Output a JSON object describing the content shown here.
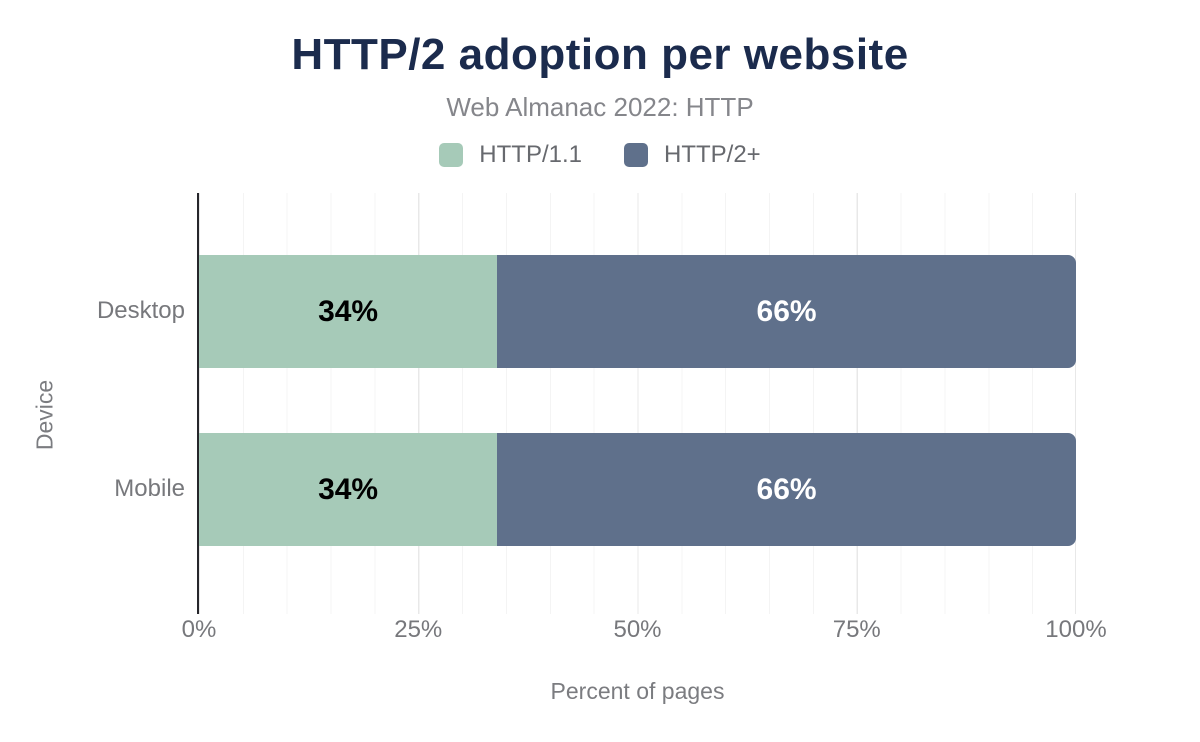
{
  "chart_data": {
    "type": "bar",
    "orientation": "horizontal",
    "stacked": true,
    "title": "HTTP/2 adoption per website",
    "subtitle": "Web Almanac 2022: HTTP",
    "xlabel": "Percent of pages",
    "ylabel": "Device",
    "categories": [
      "Desktop",
      "Mobile"
    ],
    "series": [
      {
        "name": "HTTP/1.1",
        "color": "#a6cab8",
        "values": [
          34,
          34
        ],
        "labels": [
          "34%",
          "34%"
        ]
      },
      {
        "name": "HTTP/2+",
        "color": "#5f708b",
        "values": [
          66,
          66
        ],
        "labels": [
          "66%",
          "66%"
        ]
      }
    ],
    "x_ticks": [
      {
        "label": "0%",
        "position": 0
      },
      {
        "label": "25%",
        "position": 25
      },
      {
        "label": "50%",
        "position": 50
      },
      {
        "label": "75%",
        "position": 75
      },
      {
        "label": "100%",
        "position": 100
      }
    ],
    "xlim": [
      0,
      100
    ],
    "grid": "vertical, minor every 5%, major every 25%",
    "legend_position": "top"
  },
  "colors": {
    "title": "#1b2b4d",
    "subtitle_text": "#85868b",
    "axis_text": "#77787c",
    "series_http11": "#a6cab8",
    "series_http2plus": "#5f708b",
    "bar_label_dark": "#000000",
    "bar_label_light": "#ffffff",
    "axis_line": "#26262b"
  }
}
